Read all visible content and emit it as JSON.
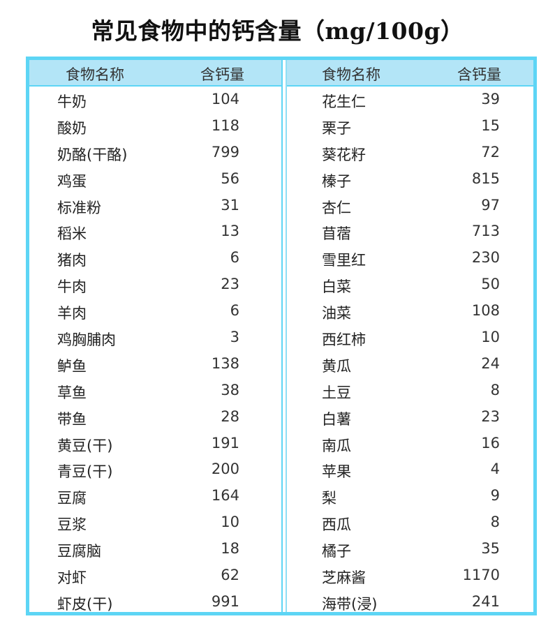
{
  "title": "常见食物中的钙含量（mg/100g）",
  "header": {
    "name": "食物名称",
    "value": "含钙量"
  },
  "colors": {
    "border": "#5dd5f5",
    "header_bg": "#b3e5f7"
  },
  "left": [
    {
      "name": "牛奶",
      "value": "104"
    },
    {
      "name": "酸奶",
      "value": "118"
    },
    {
      "name": "奶酪(干酪)",
      "value": "799"
    },
    {
      "name": "鸡蛋",
      "value": "56"
    },
    {
      "name": "标准粉",
      "value": "31"
    },
    {
      "name": "稻米",
      "value": "13"
    },
    {
      "name": "猪肉",
      "value": "6"
    },
    {
      "name": "牛肉",
      "value": "23"
    },
    {
      "name": "羊肉",
      "value": "6"
    },
    {
      "name": "鸡胸脯肉",
      "value": "3"
    },
    {
      "name": "鲈鱼",
      "value": "138"
    },
    {
      "name": "草鱼",
      "value": "38"
    },
    {
      "name": "带鱼",
      "value": "28"
    },
    {
      "name": "黄豆(干)",
      "value": "191"
    },
    {
      "name": "青豆(干)",
      "value": "200"
    },
    {
      "name": "豆腐",
      "value": "164"
    },
    {
      "name": "豆浆",
      "value": "10"
    },
    {
      "name": "豆腐脑",
      "value": "18"
    },
    {
      "name": "对虾",
      "value": "62"
    },
    {
      "name": "虾皮(干)",
      "value": "991"
    }
  ],
  "right": [
    {
      "name": "花生仁",
      "value": "39"
    },
    {
      "name": "栗子",
      "value": "15"
    },
    {
      "name": "葵花籽",
      "value": "72"
    },
    {
      "name": "榛子",
      "value": "815"
    },
    {
      "name": "杏仁",
      "value": "97"
    },
    {
      "name": "苜蓿",
      "value": "713"
    },
    {
      "name": "雪里红",
      "value": "230"
    },
    {
      "name": "白菜",
      "value": "50"
    },
    {
      "name": "油菜",
      "value": "108"
    },
    {
      "name": "西红柿",
      "value": "10"
    },
    {
      "name": "黄瓜",
      "value": "24"
    },
    {
      "name": "土豆",
      "value": "8"
    },
    {
      "name": "白薯",
      "value": "23"
    },
    {
      "name": "南瓜",
      "value": "16"
    },
    {
      "name": "苹果",
      "value": "4"
    },
    {
      "name": "梨",
      "value": "9"
    },
    {
      "name": "西瓜",
      "value": "8"
    },
    {
      "name": "橘子",
      "value": "35"
    },
    {
      "name": "芝麻酱",
      "value": "1170"
    },
    {
      "name": "海带(浸)",
      "value": "241"
    }
  ]
}
